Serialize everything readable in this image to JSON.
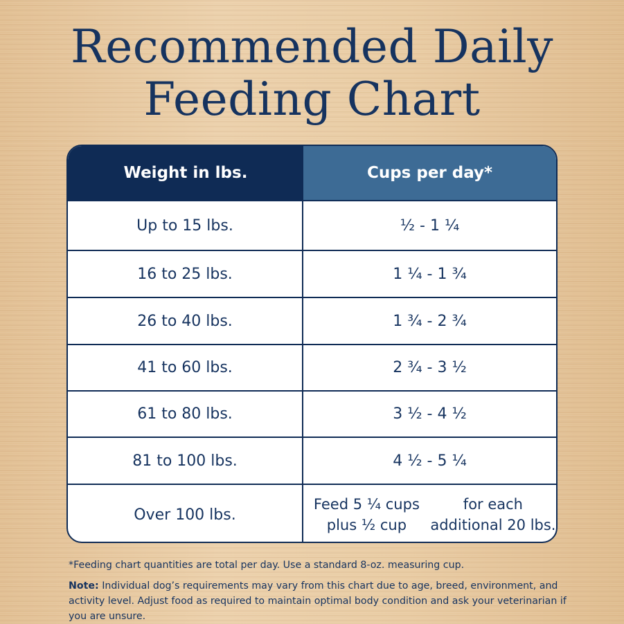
{
  "title": {
    "line1": "Recommended Daily",
    "line2": "Feeding Chart"
  },
  "table": {
    "headers": {
      "weight": "Weight in lbs.",
      "cups": "Cups per day*"
    },
    "rows": [
      {
        "weight": "Up to 15 lbs.",
        "cups": "½ - 1 ¼"
      },
      {
        "weight": "16 to 25 lbs.",
        "cups": "1 ¼ - 1 ¾"
      },
      {
        "weight": "26 to 40 lbs.",
        "cups": "1 ¾ - 2 ¾"
      },
      {
        "weight": "41 to 60 lbs.",
        "cups": "2 ¾ - 3 ½"
      },
      {
        "weight": "61 to 80 lbs.",
        "cups": "3 ½ - 4 ½"
      },
      {
        "weight": "81 to 100 lbs.",
        "cups": "4 ½ - 5 ¼"
      },
      {
        "weight": "Over 100 lbs.",
        "cups_line1": "Feed 5 ¼ cups plus ½ cup",
        "cups_line2": "for each additional 20 lbs."
      }
    ]
  },
  "footnotes": {
    "asterisk": "*Feeding chart quantities are total per day. Use a standard 8-oz. measuring cup.",
    "note_label": "Note:",
    "note_text": " Individual dog’s requirements may vary from this chart due to age, breed, environment, and activity level. Adjust food as required to maintain optimal body condition and ask your veterinarian if you are unsure."
  }
}
